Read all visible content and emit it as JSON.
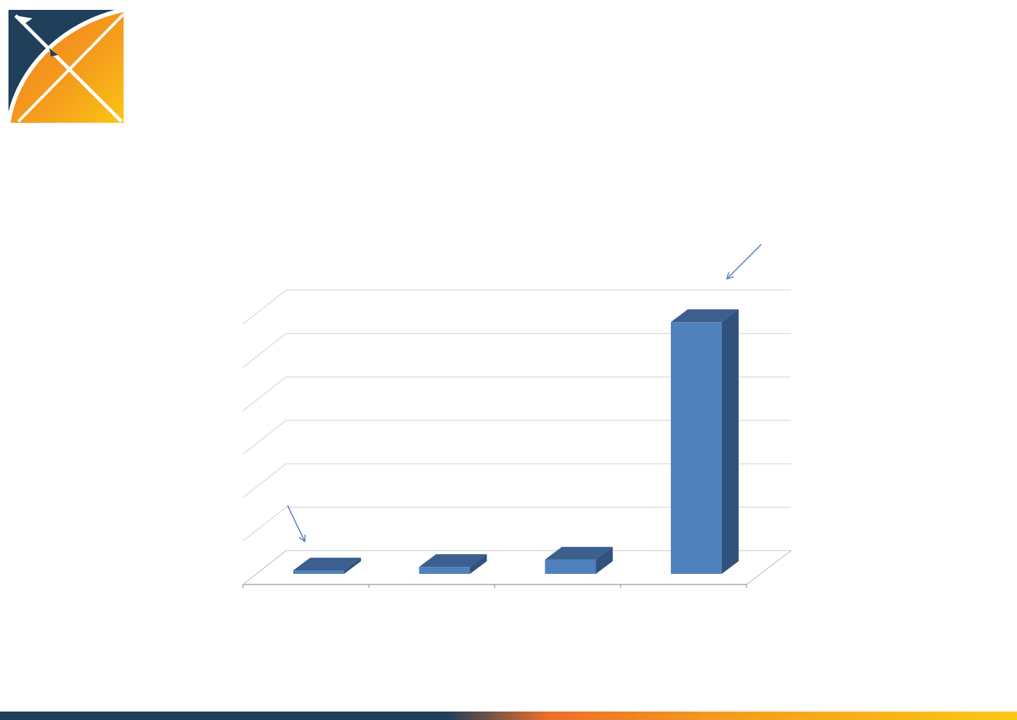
{
  "brand": {
    "logo_icon": "ohdsi-x-logo-icon",
    "navy": "#1f3f5b",
    "orange": "#f08a24",
    "yellow": "#fac217"
  },
  "chart_data": {
    "type": "bar",
    "style": "3d-column",
    "title": "",
    "xlabel": "",
    "ylabel": "",
    "categories": [
      "",
      "",
      "",
      ""
    ],
    "series": [
      {
        "values": [
          0.8,
          1.6,
          3.3,
          58
        ]
      }
    ],
    "ylim": [
      0,
      60
    ],
    "grid": true,
    "bar_color": "#4f81bd",
    "bar_top_color": "#3b5f8e",
    "bar_side_color": "#30527c",
    "annotations": [
      {
        "type": "arrow",
        "target_category_index": 0
      },
      {
        "type": "arrow",
        "target_category_index": 3
      }
    ]
  }
}
